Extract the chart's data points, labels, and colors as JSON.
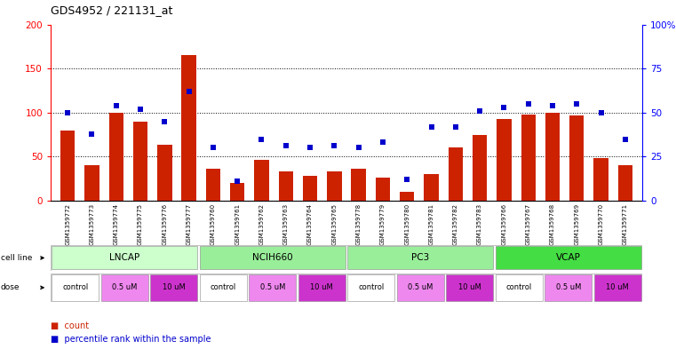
{
  "title": "GDS4952 / 221131_at",
  "samples": [
    "GSM1359772",
    "GSM1359773",
    "GSM1359774",
    "GSM1359775",
    "GSM1359776",
    "GSM1359777",
    "GSM1359760",
    "GSM1359761",
    "GSM1359762",
    "GSM1359763",
    "GSM1359764",
    "GSM1359765",
    "GSM1359778",
    "GSM1359779",
    "GSM1359780",
    "GSM1359781",
    "GSM1359782",
    "GSM1359783",
    "GSM1359766",
    "GSM1359767",
    "GSM1359768",
    "GSM1359769",
    "GSM1359770",
    "GSM1359771"
  ],
  "counts": [
    80,
    40,
    100,
    90,
    63,
    165,
    36,
    20,
    46,
    33,
    28,
    33,
    36,
    26,
    10,
    30,
    60,
    75,
    93,
    98,
    100,
    97,
    48,
    40
  ],
  "percentiles": [
    50,
    38,
    54,
    52,
    45,
    62,
    30,
    11,
    35,
    31,
    30,
    31,
    30,
    33,
    12,
    42,
    42,
    51,
    53,
    55,
    54,
    55,
    50,
    35
  ],
  "cell_lines": [
    {
      "label": "LNCAP",
      "start": 0,
      "end": 6,
      "color": "#ccffcc"
    },
    {
      "label": "NCIH660",
      "start": 6,
      "end": 12,
      "color": "#99ee99"
    },
    {
      "label": "PC3",
      "start": 12,
      "end": 18,
      "color": "#99ee99"
    },
    {
      "label": "VCAP",
      "start": 18,
      "end": 24,
      "color": "#44dd44"
    }
  ],
  "dose_labels_seq": [
    "control",
    "0.5 uM",
    "10 uM",
    "control",
    "0.5 uM",
    "10 uM",
    "control",
    "0.5 uM",
    "10 uM",
    "control",
    "0.5 uM",
    "10 uM"
  ],
  "dose_colors": {
    "control": "#ffffff",
    "0.5 uM": "#ee88ee",
    "10 uM": "#cc33cc"
  },
  "bar_color": "#cc2200",
  "dot_color": "#0000cc",
  "left_ylim": [
    0,
    200
  ],
  "right_ylim": [
    0,
    100
  ],
  "left_yticks": [
    0,
    50,
    100,
    150,
    200
  ],
  "right_yticks": [
    0,
    25,
    50,
    75,
    100
  ],
  "right_yticklabels": [
    "0",
    "25",
    "50",
    "75",
    "100%"
  ],
  "plot_bg": "#ffffff"
}
